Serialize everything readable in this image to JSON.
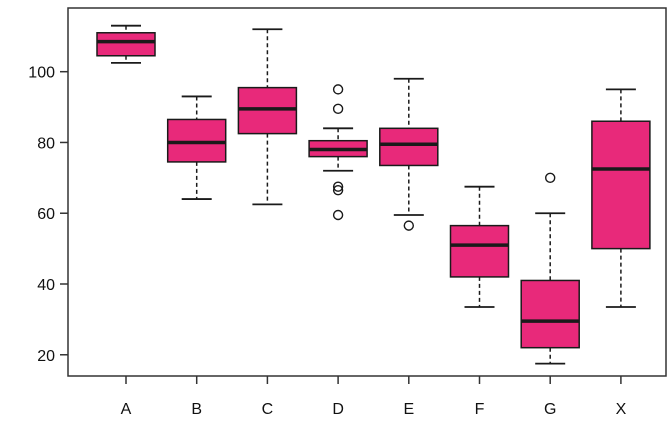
{
  "chart_data": {
    "type": "boxplot",
    "title": "",
    "xlabel": "",
    "ylabel": "",
    "categories": [
      "A",
      "B",
      "C",
      "D",
      "E",
      "F",
      "G",
      "X"
    ],
    "yticks": [
      20,
      40,
      60,
      80,
      100
    ],
    "ylim": [
      14,
      118
    ],
    "grid": false,
    "colors": {
      "box_fill": "#e8297a",
      "line": "#1a1a1a",
      "axis": "#333333"
    },
    "boxes": [
      {
        "label": "A",
        "whisker_low": 102.5,
        "q1": 104.5,
        "median": 108.5,
        "q3": 111,
        "whisker_high": 113,
        "outliers": []
      },
      {
        "label": "B",
        "whisker_low": 64,
        "q1": 74.5,
        "median": 80,
        "q3": 86.5,
        "whisker_high": 93,
        "outliers": []
      },
      {
        "label": "C",
        "whisker_low": 62.5,
        "q1": 82.5,
        "median": 89.5,
        "q3": 95.5,
        "whisker_high": 112,
        "outliers": []
      },
      {
        "label": "D",
        "whisker_low": 72,
        "q1": 76,
        "median": 78,
        "q3": 80.5,
        "whisker_high": 84,
        "outliers": [
          95,
          89.5,
          67.5,
          66.5,
          59.5
        ]
      },
      {
        "label": "E",
        "whisker_low": 59.5,
        "q1": 73.5,
        "median": 79.5,
        "q3": 84,
        "whisker_high": 98,
        "outliers": [
          56.5
        ]
      },
      {
        "label": "F",
        "whisker_low": 33.5,
        "q1": 42,
        "median": 51,
        "q3": 56.5,
        "whisker_high": 67.5,
        "outliers": []
      },
      {
        "label": "G",
        "whisker_low": 17.5,
        "q1": 22,
        "median": 29.5,
        "q3": 41,
        "whisker_high": 60,
        "outliers": [
          70
        ]
      },
      {
        "label": "X",
        "whisker_low": 33.5,
        "q1": 50,
        "median": 72.5,
        "q3": 86,
        "whisker_high": 95,
        "outliers": []
      }
    ]
  }
}
